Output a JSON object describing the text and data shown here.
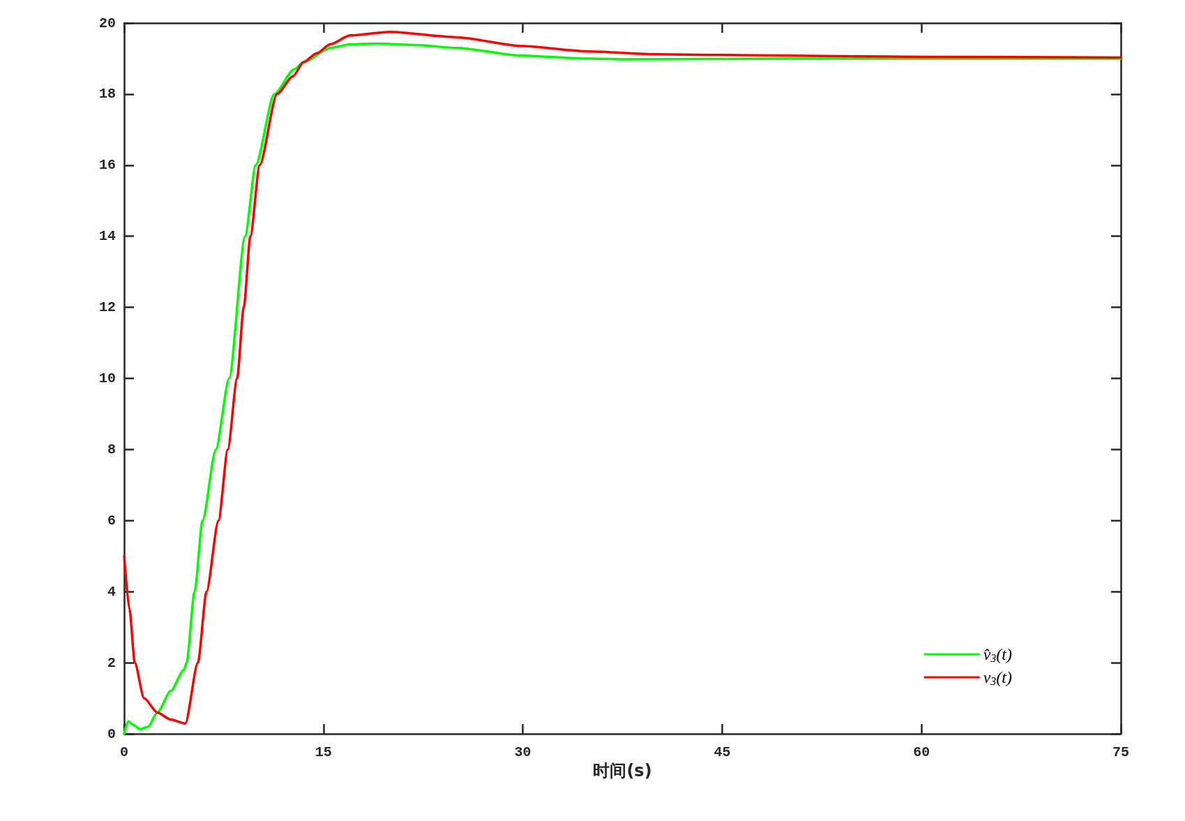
{
  "chart_data": {
    "type": "line",
    "xlabel": "时间(s)",
    "xlim": [
      0,
      75
    ],
    "xticks": [
      0,
      15,
      30,
      45,
      60,
      75
    ],
    "ylim": [
      0,
      20
    ],
    "yticks": [
      0,
      2,
      4,
      6,
      8,
      10,
      12,
      14,
      16,
      18,
      20
    ],
    "grid": false,
    "legend": "bottom right",
    "marker": "none",
    "line_style": "solid",
    "series": [
      {
        "name": "v̂$_{3}$(t)",
        "color": "#00ff00",
        "x": [
          0,
          0.3,
          0.7,
          1.2,
          1.8,
          2.5,
          3.5,
          4.5,
          4.7,
          5.3,
          5.9,
          6.9,
          7.9,
          9.1,
          9.9,
          11.3,
          12.8,
          13.5,
          15.5,
          17,
          19,
          22,
          25,
          30,
          35,
          38,
          45,
          50,
          60,
          75
        ],
        "values": [
          0,
          0.35,
          0.25,
          0.13,
          0.2,
          0.6,
          1.2,
          1.8,
          2,
          4,
          6,
          8,
          10,
          14,
          16,
          18,
          18.7,
          18.9,
          19.3,
          19.4,
          19.42,
          19.38,
          19.3,
          19.08,
          19,
          18.98,
          18.99,
          19,
          19,
          19
        ]
      },
      {
        "name": "v$_{3}$(t)",
        "color": "#ff0000",
        "x": [
          0,
          0.4,
          0.8,
          1.5,
          2.5,
          3.5,
          4.6,
          5.55,
          6.2,
          7.1,
          7.8,
          8.5,
          9,
          9.5,
          10.2,
          11.5,
          12.7,
          13.5,
          14.5,
          15.5,
          17,
          20,
          25,
          30,
          35,
          40,
          50,
          60,
          75
        ],
        "values": [
          5,
          3.5,
          2,
          1,
          0.6,
          0.4,
          0.29,
          2,
          4,
          6,
          8,
          10,
          12,
          14,
          16,
          18,
          18.5,
          18.9,
          19.15,
          19.4,
          19.65,
          19.75,
          19.6,
          19.35,
          19.2,
          19.12,
          19.08,
          19.05,
          19.03
        ]
      }
    ]
  }
}
